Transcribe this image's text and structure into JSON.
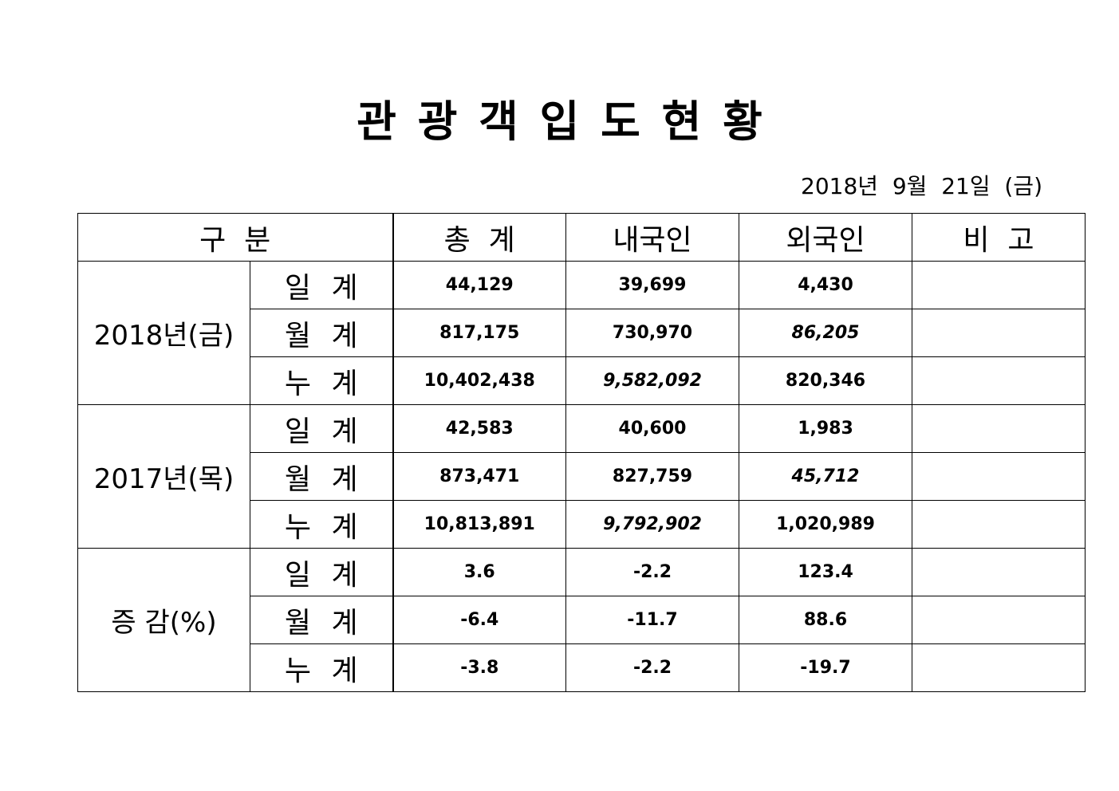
{
  "title": "관 광 객 입 도 현 황",
  "date": "2018년  9월  21일  (금)",
  "table": {
    "header": [
      "구  분",
      "총  계",
      "내국인",
      "외국인",
      "비  고"
    ],
    "groups": [
      {
        "label": "2018년(금)",
        "rows": [
          {
            "label": "일 계",
            "values": [
              "44,129",
              "39,699",
              "4,430"
            ]
          },
          {
            "label": "월 계",
            "values": [
              "817,175",
              "730,970",
              "86,205"
            ]
          },
          {
            "label": "누 계",
            "values": [
              "10,402,438",
              "9,582,092",
              "820,346"
            ]
          }
        ]
      },
      {
        "label": "2017년(목)",
        "rows": [
          {
            "label": "일 계",
            "values": [
              "42,583",
              "40,600",
              "1,983"
            ]
          },
          {
            "label": "월 계",
            "values": [
              "873,471",
              "827,759",
              "45,712"
            ]
          },
          {
            "label": "누 계",
            "values": [
              "10,813,891",
              "9,792,902",
              "1,020,989"
            ]
          }
        ]
      },
      {
        "label": "증 감(%)",
        "rows": [
          {
            "label": "일 계",
            "values": [
              "3.6",
              "-2.2",
              "123.4"
            ]
          },
          {
            "label": "월 계",
            "values": [
              "-6.4",
              "-11.7",
              "88.6"
            ]
          },
          {
            "label": "누 계",
            "values": [
              "-3.8",
              "-2.2",
              "-19.7"
            ]
          }
        ]
      }
    ]
  }
}
